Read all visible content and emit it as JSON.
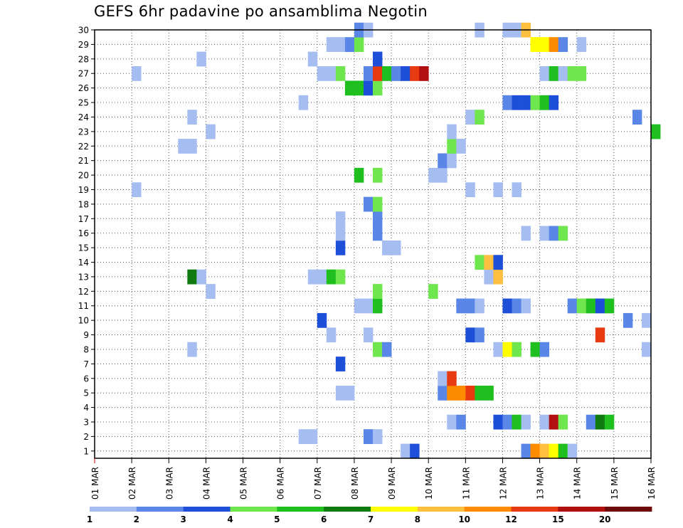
{
  "chart_data": {
    "type": "heatmap",
    "title": "GEFS 6hr padavine po ansamblima Negotin",
    "xlabel": "",
    "ylabel": "",
    "x_ticks": [
      "01 MAR",
      "02 MAR",
      "03 MAR",
      "04 MAR",
      "05 MAR",
      "06 MAR",
      "07 MAR",
      "08 MAR",
      "09 MAR",
      "10 MAR",
      "11 MAR",
      "12 MAR",
      "13 MAR",
      "14 MAR",
      "15 MAR",
      "16 MAR"
    ],
    "y_ticks": [
      "1",
      "2",
      "3",
      "4",
      "5",
      "6",
      "7",
      "8",
      "9",
      "10",
      "11",
      "12",
      "13",
      "14",
      "15",
      "16",
      "17",
      "18",
      "19",
      "20",
      "21",
      "22",
      "23",
      "24",
      "25",
      "26",
      "27",
      "28",
      "29",
      "30"
    ],
    "x_range_days": [
      0,
      15
    ],
    "y_range": [
      1,
      30
    ],
    "grid": true,
    "legend": {
      "placement": "bottom",
      "levels": [
        "1",
        "2",
        "3",
        "4",
        "5",
        "6",
        "7",
        "8",
        "10",
        "12",
        "15",
        "20"
      ],
      "colors": [
        "#a6bdf2",
        "#5a86e8",
        "#1e4fd8",
        "#6fe64e",
        "#1fbf1f",
        "#0f7a0f",
        "#ffff00",
        "#ffc040",
        "#ff8c00",
        "#e83a10",
        "#b01010",
        "#6e0a0a"
      ]
    },
    "cells": [
      {
        "m": 1,
        "d": 8.25,
        "c": 1
      },
      {
        "m": 1,
        "d": 8.5,
        "c": 3
      },
      {
        "m": 1,
        "d": 11.5,
        "c": 2
      },
      {
        "m": 1,
        "d": 11.75,
        "c": 9
      },
      {
        "m": 1,
        "d": 12.0,
        "c": 8
      },
      {
        "m": 1,
        "d": 12.25,
        "c": 7
      },
      {
        "m": 1,
        "d": 12.5,
        "c": 5
      },
      {
        "m": 1,
        "d": 12.75,
        "c": 1
      },
      {
        "m": 2,
        "d": 5.5,
        "c": 1
      },
      {
        "m": 2,
        "d": 5.75,
        "c": 1
      },
      {
        "m": 2,
        "d": 7.25,
        "c": 2
      },
      {
        "m": 2,
        "d": 7.5,
        "c": 1
      },
      {
        "m": 3,
        "d": 9.5,
        "c": 1
      },
      {
        "m": 3,
        "d": 9.75,
        "c": 2
      },
      {
        "m": 3,
        "d": 10.75,
        "c": 3
      },
      {
        "m": 3,
        "d": 11.0,
        "c": 2
      },
      {
        "m": 3,
        "d": 11.25,
        "c": 5
      },
      {
        "m": 3,
        "d": 11.5,
        "c": 1
      },
      {
        "m": 3,
        "d": 12.0,
        "c": 1
      },
      {
        "m": 3,
        "d": 12.25,
        "c": 11
      },
      {
        "m": 3,
        "d": 12.5,
        "c": 4
      },
      {
        "m": 3,
        "d": 13.25,
        "c": 2
      },
      {
        "m": 3,
        "d": 13.5,
        "c": 6
      },
      {
        "m": 3,
        "d": 13.75,
        "c": 5
      },
      {
        "m": 5,
        "d": 6.5,
        "c": 1
      },
      {
        "m": 5,
        "d": 6.75,
        "c": 1
      },
      {
        "m": 5,
        "d": 9.25,
        "c": 2
      },
      {
        "m": 5,
        "d": 9.5,
        "c": 9
      },
      {
        "m": 5,
        "d": 9.75,
        "c": 9
      },
      {
        "m": 5,
        "d": 10.0,
        "c": 10
      },
      {
        "m": 5,
        "d": 10.25,
        "c": 5
      },
      {
        "m": 5,
        "d": 10.5,
        "c": 5
      },
      {
        "m": 6,
        "d": 9.25,
        "c": 1
      },
      {
        "m": 6,
        "d": 9.5,
        "c": 10
      },
      {
        "m": 7,
        "d": 6.5,
        "c": 3
      },
      {
        "m": 8,
        "d": 2.5,
        "c": 1
      },
      {
        "m": 8,
        "d": 7.5,
        "c": 4
      },
      {
        "m": 8,
        "d": 7.75,
        "c": 2
      },
      {
        "m": 8,
        "d": 10.75,
        "c": 1
      },
      {
        "m": 8,
        "d": 11.0,
        "c": 7
      },
      {
        "m": 8,
        "d": 11.25,
        "c": 4
      },
      {
        "m": 8,
        "d": 11.75,
        "c": 5
      },
      {
        "m": 8,
        "d": 12.0,
        "c": 2
      },
      {
        "m": 8,
        "d": 14.75,
        "c": 1
      },
      {
        "m": 9,
        "d": 6.25,
        "c": 1
      },
      {
        "m": 9,
        "d": 7.25,
        "c": 1
      },
      {
        "m": 9,
        "d": 10.0,
        "c": 3
      },
      {
        "m": 9,
        "d": 10.25,
        "c": 2
      },
      {
        "m": 9,
        "d": 13.5,
        "c": 10
      },
      {
        "m": 10,
        "d": 6.0,
        "c": 3
      },
      {
        "m": 10,
        "d": 14.25,
        "c": 2
      },
      {
        "m": 10,
        "d": 14.75,
        "c": 1
      },
      {
        "m": 11,
        "d": 7.0,
        "c": 1
      },
      {
        "m": 11,
        "d": 7.25,
        "c": 1
      },
      {
        "m": 11,
        "d": 7.5,
        "c": 5
      },
      {
        "m": 11,
        "d": 9.75,
        "c": 2
      },
      {
        "m": 11,
        "d": 10.0,
        "c": 2
      },
      {
        "m": 11,
        "d": 10.25,
        "c": 1
      },
      {
        "m": 11,
        "d": 11.0,
        "c": 3
      },
      {
        "m": 11,
        "d": 11.25,
        "c": 2
      },
      {
        "m": 11,
        "d": 11.5,
        "c": 1
      },
      {
        "m": 11,
        "d": 12.75,
        "c": 2
      },
      {
        "m": 11,
        "d": 13.0,
        "c": 4
      },
      {
        "m": 11,
        "d": 13.25,
        "c": 5
      },
      {
        "m": 11,
        "d": 13.5,
        "c": 3
      },
      {
        "m": 11,
        "d": 13.75,
        "c": 5
      },
      {
        "m": 12,
        "d": 3.0,
        "c": 1
      },
      {
        "m": 12,
        "d": 7.5,
        "c": 4
      },
      {
        "m": 12,
        "d": 9.0,
        "c": 4
      },
      {
        "m": 13,
        "d": 2.5,
        "c": 6
      },
      {
        "m": 13,
        "d": 2.75,
        "c": 1
      },
      {
        "m": 13,
        "d": 5.75,
        "c": 1
      },
      {
        "m": 13,
        "d": 6.0,
        "c": 1
      },
      {
        "m": 13,
        "d": 6.25,
        "c": 5
      },
      {
        "m": 13,
        "d": 6.5,
        "c": 4
      },
      {
        "m": 13,
        "d": 10.5,
        "c": 1
      },
      {
        "m": 13,
        "d": 10.75,
        "c": 8
      },
      {
        "m": 14,
        "d": 10.25,
        "c": 4
      },
      {
        "m": 14,
        "d": 10.5,
        "c": 8
      },
      {
        "m": 14,
        "d": 10.75,
        "c": 3
      },
      {
        "m": 15,
        "d": 6.5,
        "c": 3
      },
      {
        "m": 15,
        "d": 7.75,
        "c": 1
      },
      {
        "m": 15,
        "d": 8.0,
        "c": 1
      },
      {
        "m": 16,
        "d": 6.5,
        "c": 1
      },
      {
        "m": 16,
        "d": 7.5,
        "c": 2
      },
      {
        "m": 16,
        "d": 11.5,
        "c": 1
      },
      {
        "m": 16,
        "d": 12.0,
        "c": 1
      },
      {
        "m": 16,
        "d": 12.25,
        "c": 2
      },
      {
        "m": 16,
        "d": 12.5,
        "c": 4
      },
      {
        "m": 17,
        "d": 6.5,
        "c": 1
      },
      {
        "m": 17,
        "d": 7.5,
        "c": 2
      },
      {
        "m": 18,
        "d": 7.25,
        "c": 2
      },
      {
        "m": 18,
        "d": 7.5,
        "c": 4
      },
      {
        "m": 19,
        "d": 1.0,
        "c": 1
      },
      {
        "m": 19,
        "d": 10.0,
        "c": 1
      },
      {
        "m": 19,
        "d": 10.75,
        "c": 1
      },
      {
        "m": 19,
        "d": 11.25,
        "c": 1
      },
      {
        "m": 20,
        "d": 7.0,
        "c": 5
      },
      {
        "m": 20,
        "d": 7.5,
        "c": 4
      },
      {
        "m": 20,
        "d": 9.0,
        "c": 1
      },
      {
        "m": 20,
        "d": 9.25,
        "c": 1
      },
      {
        "m": 21,
        "d": 9.25,
        "c": 2
      },
      {
        "m": 21,
        "d": 9.5,
        "c": 1
      },
      {
        "m": 22,
        "d": 2.25,
        "c": 1
      },
      {
        "m": 22,
        "d": 2.5,
        "c": 1
      },
      {
        "m": 22,
        "d": 9.5,
        "c": 4
      },
      {
        "m": 22,
        "d": 9.75,
        "c": 1
      },
      {
        "m": 23,
        "d": 3.0,
        "c": 1
      },
      {
        "m": 23,
        "d": 9.5,
        "c": 1
      },
      {
        "m": 23,
        "d": 15.0,
        "c": 5
      },
      {
        "m": 24,
        "d": 2.5,
        "c": 1
      },
      {
        "m": 24,
        "d": 10.0,
        "c": 1
      },
      {
        "m": 24,
        "d": 10.25,
        "c": 4
      },
      {
        "m": 24,
        "d": 14.5,
        "c": 2
      },
      {
        "m": 25,
        "d": 5.5,
        "c": 1
      },
      {
        "m": 25,
        "d": 11.0,
        "c": 2
      },
      {
        "m": 25,
        "d": 11.25,
        "c": 3
      },
      {
        "m": 25,
        "d": 11.5,
        "c": 3
      },
      {
        "m": 25,
        "d": 11.75,
        "c": 4
      },
      {
        "m": 25,
        "d": 12.0,
        "c": 5
      },
      {
        "m": 25,
        "d": 12.25,
        "c": 3
      },
      {
        "m": 26,
        "d": 6.75,
        "c": 5
      },
      {
        "m": 26,
        "d": 7.0,
        "c": 5
      },
      {
        "m": 26,
        "d": 7.25,
        "c": 3
      },
      {
        "m": 26,
        "d": 7.5,
        "c": 4
      },
      {
        "m": 27,
        "d": 1.0,
        "c": 1
      },
      {
        "m": 27,
        "d": 6.0,
        "c": 1
      },
      {
        "m": 27,
        "d": 6.25,
        "c": 1
      },
      {
        "m": 27,
        "d": 6.5,
        "c": 4
      },
      {
        "m": 27,
        "d": 7.25,
        "c": 2
      },
      {
        "m": 27,
        "d": 7.5,
        "c": 10
      },
      {
        "m": 27,
        "d": 7.75,
        "c": 5
      },
      {
        "m": 27,
        "d": 8.0,
        "c": 2
      },
      {
        "m": 27,
        "d": 8.25,
        "c": 3
      },
      {
        "m": 27,
        "d": 8.5,
        "c": 10
      },
      {
        "m": 27,
        "d": 8.75,
        "c": 11
      },
      {
        "m": 27,
        "d": 12.0,
        "c": 1
      },
      {
        "m": 27,
        "d": 12.25,
        "c": 5
      },
      {
        "m": 27,
        "d": 12.5,
        "c": 1
      },
      {
        "m": 27,
        "d": 12.75,
        "c": 4
      },
      {
        "m": 27,
        "d": 13.0,
        "c": 4
      },
      {
        "m": 28,
        "d": 2.75,
        "c": 1
      },
      {
        "m": 28,
        "d": 5.75,
        "c": 1
      },
      {
        "m": 28,
        "d": 7.5,
        "c": 3
      },
      {
        "m": 29,
        "d": 6.25,
        "c": 1
      },
      {
        "m": 29,
        "d": 6.5,
        "c": 1
      },
      {
        "m": 29,
        "d": 6.75,
        "c": 2
      },
      {
        "m": 29,
        "d": 7.0,
        "c": 4
      },
      {
        "m": 29,
        "d": 11.75,
        "c": 7
      },
      {
        "m": 29,
        "d": 12.0,
        "c": 7
      },
      {
        "m": 29,
        "d": 12.25,
        "c": 9
      },
      {
        "m": 29,
        "d": 12.5,
        "c": 2
      },
      {
        "m": 29,
        "d": 13.0,
        "c": 1
      },
      {
        "m": 30,
        "d": 7.0,
        "c": 2
      },
      {
        "m": 30,
        "d": 7.25,
        "c": 1
      },
      {
        "m": 30,
        "d": 10.25,
        "c": 1
      },
      {
        "m": 30,
        "d": 11.0,
        "c": 1
      },
      {
        "m": 30,
        "d": 11.25,
        "c": 1
      },
      {
        "m": 30,
        "d": 11.5,
        "c": 8
      }
    ]
  }
}
